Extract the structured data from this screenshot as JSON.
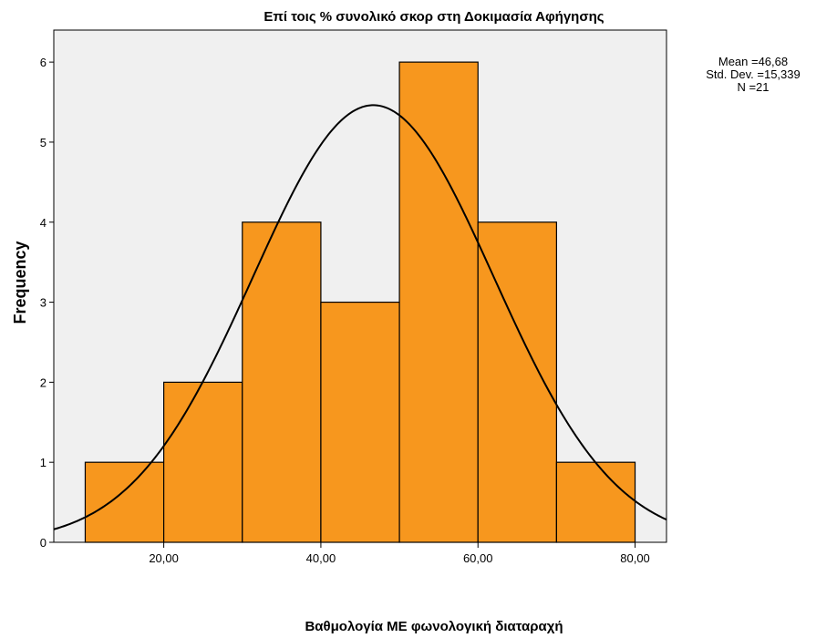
{
  "chart_data": {
    "type": "bar",
    "title": "Επί τοις % συνολικό σκορ στη Δοκιμασία Αφήγησης",
    "subtitle": "",
    "xlabel": "Βαθμολογία ΜΕ φωνολογική διαταραχή",
    "ylabel": "Frequency",
    "bins": [
      {
        "from": 10,
        "to": 20,
        "count": 1
      },
      {
        "from": 20,
        "to": 30,
        "count": 2
      },
      {
        "from": 30,
        "to": 40,
        "count": 4
      },
      {
        "from": 40,
        "to": 50,
        "count": 3
      },
      {
        "from": 50,
        "to": 60,
        "count": 6
      },
      {
        "from": 60,
        "to": 70,
        "count": 4
      },
      {
        "from": 70,
        "to": 80,
        "count": 1
      }
    ],
    "xlim": [
      6,
      84
    ],
    "ylim": [
      0,
      6.4
    ],
    "x_ticks": [
      20,
      40,
      60,
      80
    ],
    "x_tick_labels": [
      "20,00",
      "40,00",
      "60,00",
      "80,00"
    ],
    "y_ticks": [
      0,
      1,
      2,
      3,
      4,
      5,
      6
    ],
    "y_tick_labels": [
      "0",
      "1",
      "2",
      "3",
      "4",
      "5",
      "6"
    ],
    "normal_curve": {
      "mean": 46.68,
      "std_dev": 15.339,
      "n": 21,
      "bin_width": 10
    },
    "grid": false,
    "legend": "none",
    "stats_box": {
      "mean_line": "Mean =46,68",
      "std_line": "Std. Dev. =15,339",
      "n_line": "N =21"
    },
    "colors": {
      "bar_fill": "#f7971e",
      "bar_stroke": "#000000",
      "plot_background": "#f0f0f0",
      "curve": "#000000"
    }
  }
}
